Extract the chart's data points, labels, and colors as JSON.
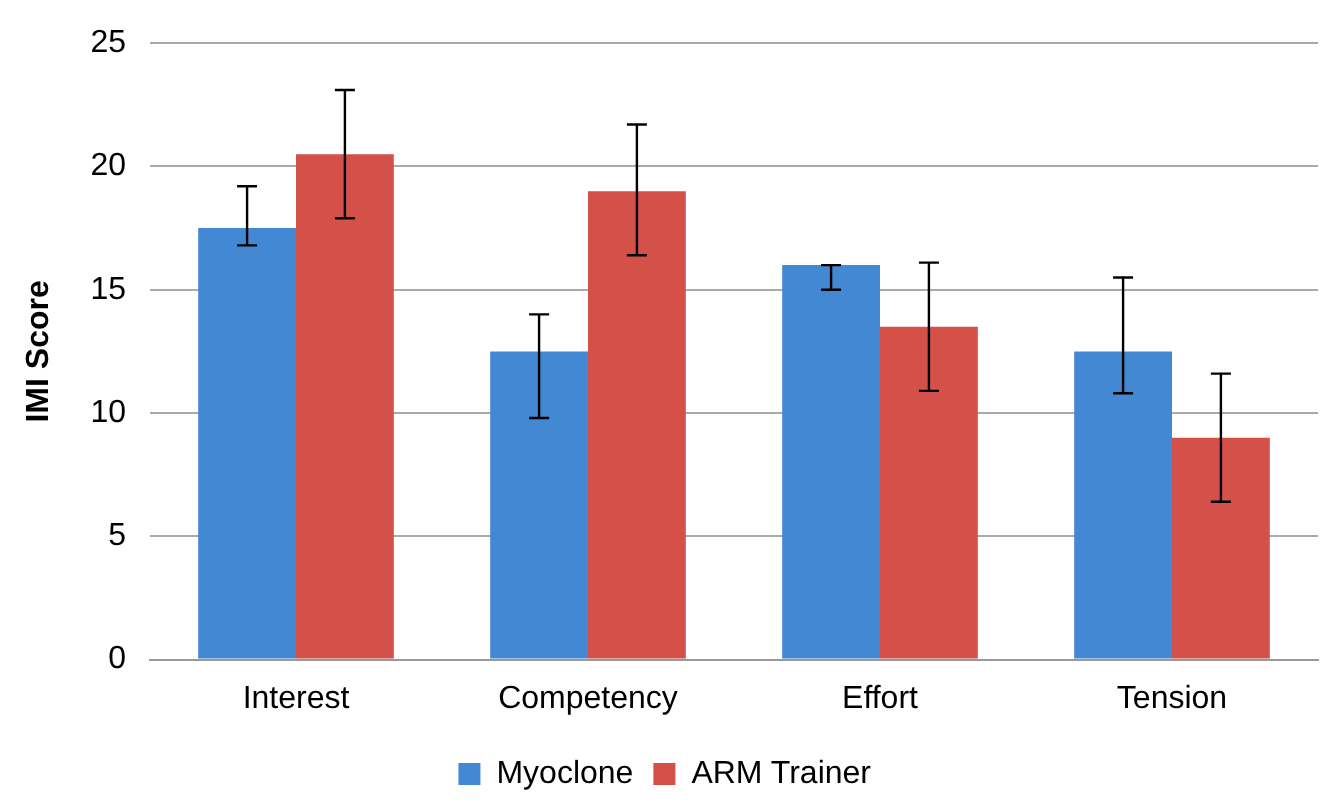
{
  "chart_data": {
    "type": "bar",
    "ylabel": "IMI Score",
    "categories": [
      "Interest",
      "Competency",
      "Effort",
      "Tension"
    ],
    "series": [
      {
        "name": "Myoclone",
        "color": "#4388d3",
        "values": [
          17.5,
          12.5,
          16,
          12.5
        ],
        "errors": [
          [
            16.8,
            19.2
          ],
          [
            9.8,
            14.0
          ],
          [
            15.0,
            16.0
          ],
          [
            10.8,
            15.5
          ]
        ]
      },
      {
        "name": "ARM Trainer",
        "color": "#d4514a",
        "values": [
          20.5,
          19,
          13.5,
          9
        ],
        "errors": [
          [
            17.9,
            23.1
          ],
          [
            16.4,
            21.7
          ],
          [
            10.9,
            16.1
          ],
          [
            6.4,
            11.6
          ]
        ]
      }
    ],
    "ylim": [
      0,
      25
    ],
    "yticks": [
      0,
      5,
      10,
      15,
      20,
      25
    ],
    "grid": "y",
    "legend": "bottom"
  }
}
